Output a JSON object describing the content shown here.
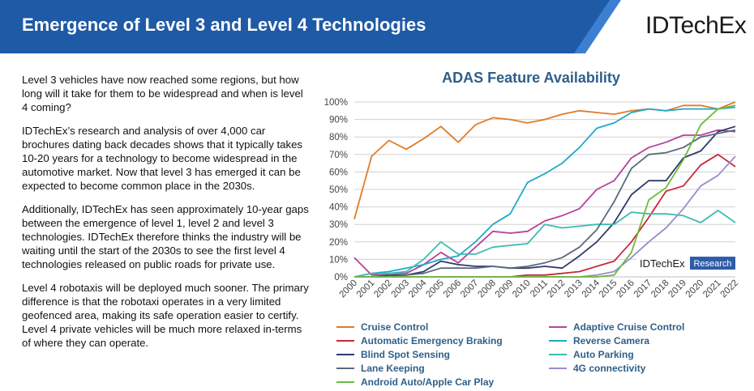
{
  "header": {
    "title": "Emergence of Level 3 and Level 4 Technologies",
    "logo_text": "IDTechEx",
    "band_color": "#1f5aa6",
    "accent_color": "#3c7fd0"
  },
  "body": {
    "paragraphs": [
      "Level 3 vehicles have now reached some regions, but how long will it take for them to be widespread and when is level 4 coming?",
      "IDTechEx’s research and analysis of over 4,000 car brochures dating back decades shows that it typically takes 10-20 years for a technology to become widespread in the automotive market. Now that level 3 has emerged it can be expected to become common place in the 2030s.",
      "Additionally, IDTechEx has seen approximately 10-year gaps between the emergence of level 1, level 2 and level 3 technologies. IDTechEx therefore thinks the industry will be waiting until the start of the 2030s to see the first level 4 technologies released on public roads for private use.",
      "Level 4 robotaxis will be deployed much sooner. The primary difference is that the robotaxi operates in a very limited geofenced area, making its safe operation easier to certify. Level 4 private vehicles will be much more relaxed in-terms of where they can operate."
    ]
  },
  "chart_data": {
    "type": "line",
    "title": "ADAS Feature Availability",
    "xlabel": "",
    "ylabel": "",
    "ylim": [
      0,
      100
    ],
    "yticks": [
      "0%",
      "10%",
      "20%",
      "30%",
      "40%",
      "50%",
      "60%",
      "70%",
      "80%",
      "90%",
      "100%"
    ],
    "grid": true,
    "watermark": {
      "brand": "IDTechEx",
      "tag": "Research"
    },
    "x": [
      "2000",
      "2001",
      "2002",
      "2003",
      "2004",
      "2005",
      "2006",
      "2007",
      "2008",
      "2009",
      "2010",
      "2011",
      "2012",
      "2013",
      "2014",
      "2015",
      "2016",
      "2017",
      "2018",
      "2019",
      "2020",
      "2021",
      "2022"
    ],
    "series": [
      {
        "name": "Cruise Control",
        "color": "#e07b28",
        "values": [
          33,
          69,
          78,
          73,
          79,
          86,
          77,
          87,
          91,
          90,
          88,
          90,
          93,
          95,
          94,
          93,
          95,
          96,
          95,
          98,
          98,
          96,
          100
        ]
      },
      {
        "name": "Adaptive Cruise Control",
        "color": "#b5439a",
        "values": [
          11,
          1,
          2,
          2,
          7,
          14,
          8,
          17,
          26,
          25,
          26,
          32,
          35,
          39,
          50,
          55,
          68,
          74,
          77,
          81,
          81,
          84,
          83
        ]
      },
      {
        "name": "Automatic Emergency Braking",
        "color": "#c8283c",
        "values": [
          0,
          0,
          0,
          0,
          0,
          0,
          0,
          0,
          0,
          0,
          1,
          1,
          2,
          3,
          6,
          9,
          20,
          34,
          49,
          52,
          64,
          70,
          63
        ]
      },
      {
        "name": "Reverse Camera",
        "color": "#20a9c8",
        "values": [
          0,
          2,
          3,
          5,
          7,
          10,
          12,
          20,
          30,
          36,
          54,
          59,
          65,
          74,
          85,
          88,
          94,
          96,
          95,
          96,
          96,
          96,
          97
        ]
      },
      {
        "name": "Blind Spot Sensing",
        "color": "#2e3a6e",
        "values": [
          0,
          0,
          1,
          1,
          3,
          9,
          7,
          6,
          6,
          5,
          5,
          6,
          5,
          12,
          20,
          31,
          47,
          55,
          55,
          68,
          72,
          83,
          86
        ]
      },
      {
        "name": "Auto Parking",
        "color": "#3cbcb2",
        "values": [
          0,
          2,
          2,
          3,
          10,
          20,
          13,
          13,
          17,
          18,
          19,
          30,
          28,
          29,
          30,
          30,
          37,
          36,
          36,
          35,
          31,
          38,
          31
        ]
      },
      {
        "name": "Lane Keeping",
        "color": "#5a6a7e",
        "values": [
          0,
          0,
          0,
          1,
          2,
          5,
          5,
          5,
          6,
          5,
          6,
          8,
          11,
          17,
          27,
          43,
          62,
          70,
          71,
          74,
          80,
          82,
          84
        ]
      },
      {
        "name": "4G connectivity",
        "color": "#9a8cd0",
        "values": [
          0,
          0,
          0,
          0,
          0,
          0,
          0,
          0,
          0,
          0,
          0,
          0,
          0,
          0,
          1,
          3,
          11,
          20,
          28,
          39,
          52,
          58,
          69
        ]
      },
      {
        "name": "Android Auto/Apple Car Play",
        "color": "#6dbb3c",
        "values": [
          0,
          0,
          0,
          0,
          0,
          0,
          0,
          0,
          0,
          0,
          0,
          0,
          0,
          0,
          0,
          1,
          14,
          44,
          51,
          67,
          87,
          96,
          98
        ]
      }
    ]
  }
}
